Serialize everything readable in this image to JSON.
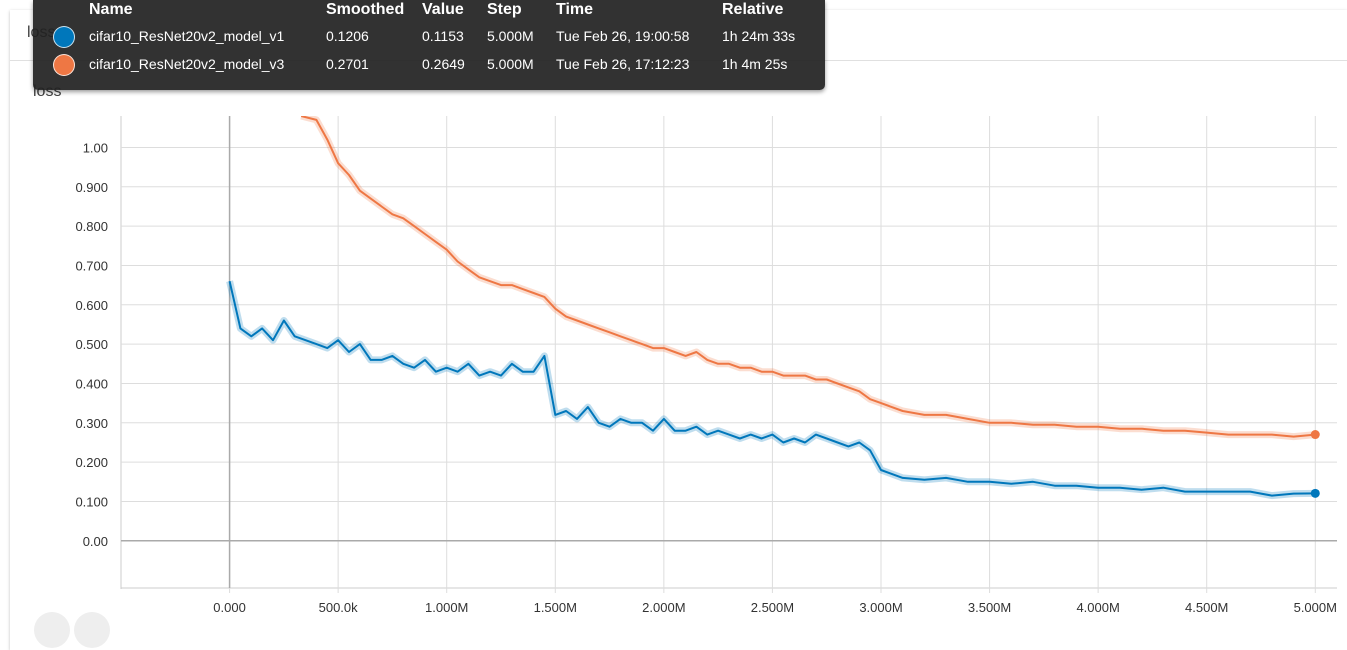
{
  "card": {
    "title": "loss"
  },
  "chart_title": "loss",
  "tooltip": {
    "headers": {
      "name": "Name",
      "smoothed": "Smoothed",
      "value": "Value",
      "step": "Step",
      "time": "Time",
      "relative": "Relative"
    },
    "rows": [
      {
        "name": "cifar10_ResNet20v2_model_v1",
        "smoothed": "0.1206",
        "value": "0.1153",
        "step": "5.000M",
        "time": "Tue Feb 26, 19:00:58",
        "relative": "1h 24m 33s",
        "color": "#0077bb"
      },
      {
        "name": "cifar10_ResNet20v2_model_v3",
        "smoothed": "0.2701",
        "value": "0.2649",
        "step": "5.000M",
        "time": "Tue Feb 26, 17:12:23",
        "relative": "1h 4m 25s",
        "color": "#ee7744"
      }
    ]
  },
  "chart_data": {
    "type": "line",
    "title": "loss",
    "xlabel": "",
    "ylabel": "",
    "xlim": [
      -500000,
      5100000
    ],
    "ylim": [
      -0.12,
      1.08
    ],
    "grid": true,
    "x_ticks": [
      {
        "v": 0,
        "label": "0.000"
      },
      {
        "v": 500000,
        "label": "500.0k"
      },
      {
        "v": 1000000,
        "label": "1.000M"
      },
      {
        "v": 1500000,
        "label": "1.500M"
      },
      {
        "v": 2000000,
        "label": "2.000M"
      },
      {
        "v": 2500000,
        "label": "2.500M"
      },
      {
        "v": 3000000,
        "label": "3.000M"
      },
      {
        "v": 3500000,
        "label": "3.500M"
      },
      {
        "v": 4000000,
        "label": "4.000M"
      },
      {
        "v": 4500000,
        "label": "4.500M"
      },
      {
        "v": 5000000,
        "label": "5.000M"
      }
    ],
    "y_ticks": [
      {
        "v": 0.0,
        "label": "0.00"
      },
      {
        "v": 0.1,
        "label": "0.100"
      },
      {
        "v": 0.2,
        "label": "0.200"
      },
      {
        "v": 0.3,
        "label": "0.300"
      },
      {
        "v": 0.4,
        "label": "0.400"
      },
      {
        "v": 0.5,
        "label": "0.500"
      },
      {
        "v": 0.6,
        "label": "0.600"
      },
      {
        "v": 0.7,
        "label": "0.700"
      },
      {
        "v": 0.8,
        "label": "0.800"
      },
      {
        "v": 0.9,
        "label": "0.900"
      },
      {
        "v": 1.0,
        "label": "1.00"
      }
    ],
    "series": [
      {
        "name": "cifar10_ResNet20v2_model_v1",
        "color": "#0077bb",
        "x": [
          0,
          50000,
          100000,
          150000,
          200000,
          250000,
          300000,
          350000,
          400000,
          450000,
          500000,
          550000,
          600000,
          650000,
          700000,
          750000,
          800000,
          850000,
          900000,
          950000,
          1000000,
          1050000,
          1100000,
          1150000,
          1200000,
          1250000,
          1300000,
          1350000,
          1400000,
          1450000,
          1500000,
          1550000,
          1600000,
          1650000,
          1700000,
          1750000,
          1800000,
          1850000,
          1900000,
          1950000,
          2000000,
          2050000,
          2100000,
          2150000,
          2200000,
          2250000,
          2300000,
          2350000,
          2400000,
          2450000,
          2500000,
          2550000,
          2600000,
          2650000,
          2700000,
          2750000,
          2800000,
          2850000,
          2900000,
          2950000,
          3000000,
          3100000,
          3200000,
          3300000,
          3400000,
          3500000,
          3600000,
          3700000,
          3800000,
          3900000,
          4000000,
          4100000,
          4200000,
          4300000,
          4400000,
          4500000,
          4600000,
          4700000,
          4800000,
          4900000,
          5000000
        ],
        "y": [
          0.66,
          0.54,
          0.52,
          0.54,
          0.51,
          0.56,
          0.52,
          0.51,
          0.5,
          0.49,
          0.51,
          0.48,
          0.5,
          0.46,
          0.46,
          0.47,
          0.45,
          0.44,
          0.46,
          0.43,
          0.44,
          0.43,
          0.45,
          0.42,
          0.43,
          0.42,
          0.45,
          0.43,
          0.43,
          0.47,
          0.32,
          0.33,
          0.31,
          0.34,
          0.3,
          0.29,
          0.31,
          0.3,
          0.3,
          0.28,
          0.31,
          0.28,
          0.28,
          0.29,
          0.27,
          0.28,
          0.27,
          0.26,
          0.27,
          0.26,
          0.27,
          0.25,
          0.26,
          0.25,
          0.27,
          0.26,
          0.25,
          0.24,
          0.25,
          0.23,
          0.18,
          0.16,
          0.155,
          0.16,
          0.15,
          0.15,
          0.145,
          0.15,
          0.14,
          0.14,
          0.135,
          0.135,
          0.13,
          0.135,
          0.125,
          0.125,
          0.125,
          0.125,
          0.115,
          0.12,
          0.1206
        ]
      },
      {
        "name": "cifar10_ResNet20v2_model_v3",
        "color": "#ee7744",
        "x": [
          330000,
          400000,
          450000,
          500000,
          550000,
          600000,
          650000,
          700000,
          750000,
          800000,
          850000,
          900000,
          950000,
          1000000,
          1050000,
          1100000,
          1150000,
          1200000,
          1250000,
          1300000,
          1350000,
          1400000,
          1450000,
          1500000,
          1550000,
          1600000,
          1650000,
          1700000,
          1750000,
          1800000,
          1850000,
          1900000,
          1950000,
          2000000,
          2050000,
          2100000,
          2150000,
          2200000,
          2250000,
          2300000,
          2350000,
          2400000,
          2450000,
          2500000,
          2550000,
          2600000,
          2650000,
          2700000,
          2750000,
          2800000,
          2850000,
          2900000,
          2950000,
          3000000,
          3100000,
          3200000,
          3300000,
          3400000,
          3500000,
          3600000,
          3700000,
          3800000,
          3900000,
          4000000,
          4100000,
          4200000,
          4300000,
          4400000,
          4500000,
          4600000,
          4700000,
          4800000,
          4900000,
          5000000
        ],
        "y": [
          1.08,
          1.07,
          1.02,
          0.96,
          0.93,
          0.89,
          0.87,
          0.85,
          0.83,
          0.82,
          0.8,
          0.78,
          0.76,
          0.74,
          0.71,
          0.69,
          0.67,
          0.66,
          0.65,
          0.65,
          0.64,
          0.63,
          0.62,
          0.59,
          0.57,
          0.56,
          0.55,
          0.54,
          0.53,
          0.52,
          0.51,
          0.5,
          0.49,
          0.49,
          0.48,
          0.47,
          0.48,
          0.46,
          0.45,
          0.45,
          0.44,
          0.44,
          0.43,
          0.43,
          0.42,
          0.42,
          0.42,
          0.41,
          0.41,
          0.4,
          0.39,
          0.38,
          0.36,
          0.35,
          0.33,
          0.32,
          0.32,
          0.31,
          0.3,
          0.3,
          0.295,
          0.295,
          0.29,
          0.29,
          0.285,
          0.285,
          0.28,
          0.28,
          0.275,
          0.27,
          0.27,
          0.27,
          0.265,
          0.2701
        ]
      }
    ]
  }
}
